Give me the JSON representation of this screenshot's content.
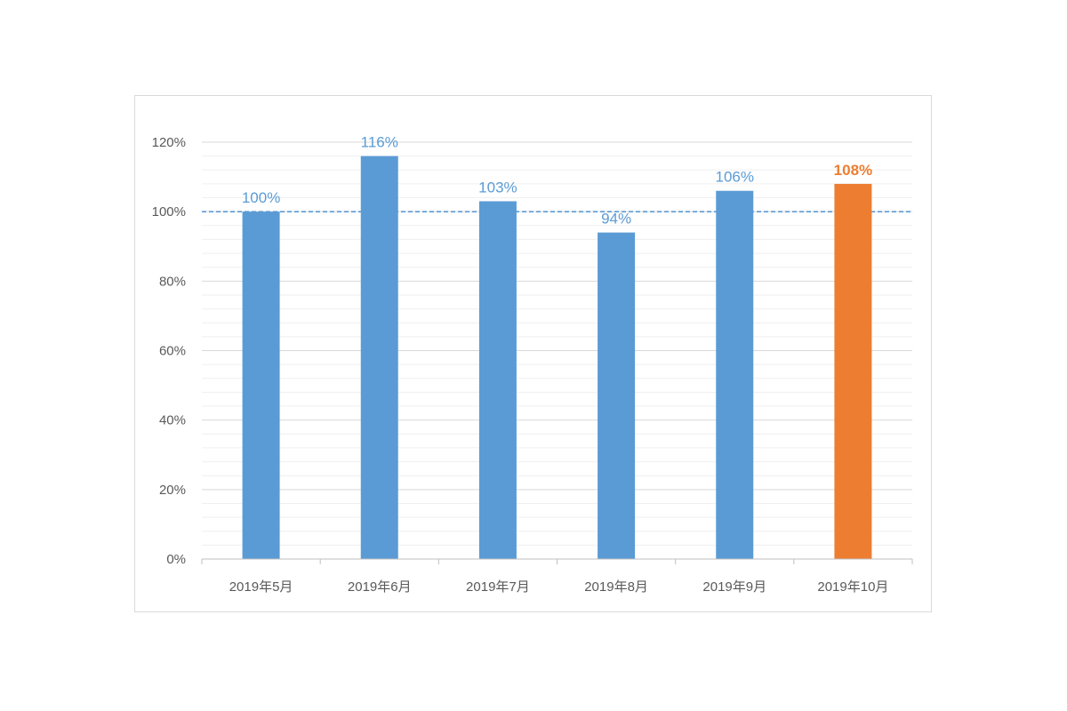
{
  "chart_data": {
    "type": "bar",
    "categories": [
      "2019年5月",
      "2019年6月",
      "2019年7月",
      "2019年8月",
      "2019年9月",
      "2019年10月"
    ],
    "values": [
      100,
      116,
      103,
      94,
      106,
      108
    ],
    "value_labels": [
      "100%",
      "116%",
      "103%",
      "94%",
      "106%",
      "108%"
    ],
    "highlight_index": 5,
    "ylim": [
      0,
      120
    ],
    "yticks": [
      0,
      20,
      40,
      60,
      80,
      100,
      120
    ],
    "ytick_labels": [
      "0%",
      "20%",
      "40%",
      "60%",
      "80%",
      "100%",
      "120%"
    ],
    "reference_line": 100,
    "grid": true,
    "colors": {
      "bar": "#5b9bd5",
      "highlight": "#ed7d31",
      "reference_line": "#5b9bd5",
      "grid": "#d9d9d9",
      "minor_grid": "#efefef",
      "axis": "#bfbfbf"
    }
  }
}
